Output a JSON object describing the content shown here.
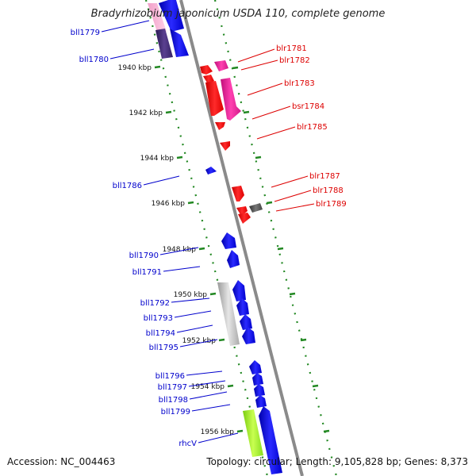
{
  "title": "Bradyrhizobium japonicum USDA 110, complete genome",
  "footer": {
    "accession": "Accession: NC_004463",
    "summary": "Topology: circular; Length: 9,105,828 bp; Genes: 8,373"
  },
  "colors": {
    "backbone": "#888888",
    "tick": "#228822",
    "reverse_label": "#0000cc",
    "forward_label": "#dd0000"
  },
  "ruler": [
    {
      "label": "1940 kbp"
    },
    {
      "label": "1942 kbp"
    },
    {
      "label": "1944 kbp"
    },
    {
      "label": "1946 kbp"
    },
    {
      "label": "1948 kbp"
    },
    {
      "label": "1950 kbp"
    },
    {
      "label": "1952 kbp"
    },
    {
      "label": "1954 kbp"
    },
    {
      "label": "1956 kbp"
    }
  ],
  "forward_genes": [
    {
      "name": "blr1781"
    },
    {
      "name": "blr1782"
    },
    {
      "name": "blr1783"
    },
    {
      "name": "bsr1784"
    },
    {
      "name": "blr1785"
    },
    {
      "name": "blr1787"
    },
    {
      "name": "blr1788"
    },
    {
      "name": "blr1789"
    }
  ],
  "reverse_genes": [
    {
      "name": "bll1779"
    },
    {
      "name": "bll1780"
    },
    {
      "name": "bll1786"
    },
    {
      "name": "bll1790"
    },
    {
      "name": "bll1791"
    },
    {
      "name": "bll1792"
    },
    {
      "name": "bll1793"
    },
    {
      "name": "bll1794"
    },
    {
      "name": "bll1795"
    },
    {
      "name": "bll1796"
    },
    {
      "name": "bll1797"
    },
    {
      "name": "bll1798"
    },
    {
      "name": "bll1799"
    },
    {
      "name": "rhcV"
    }
  ]
}
